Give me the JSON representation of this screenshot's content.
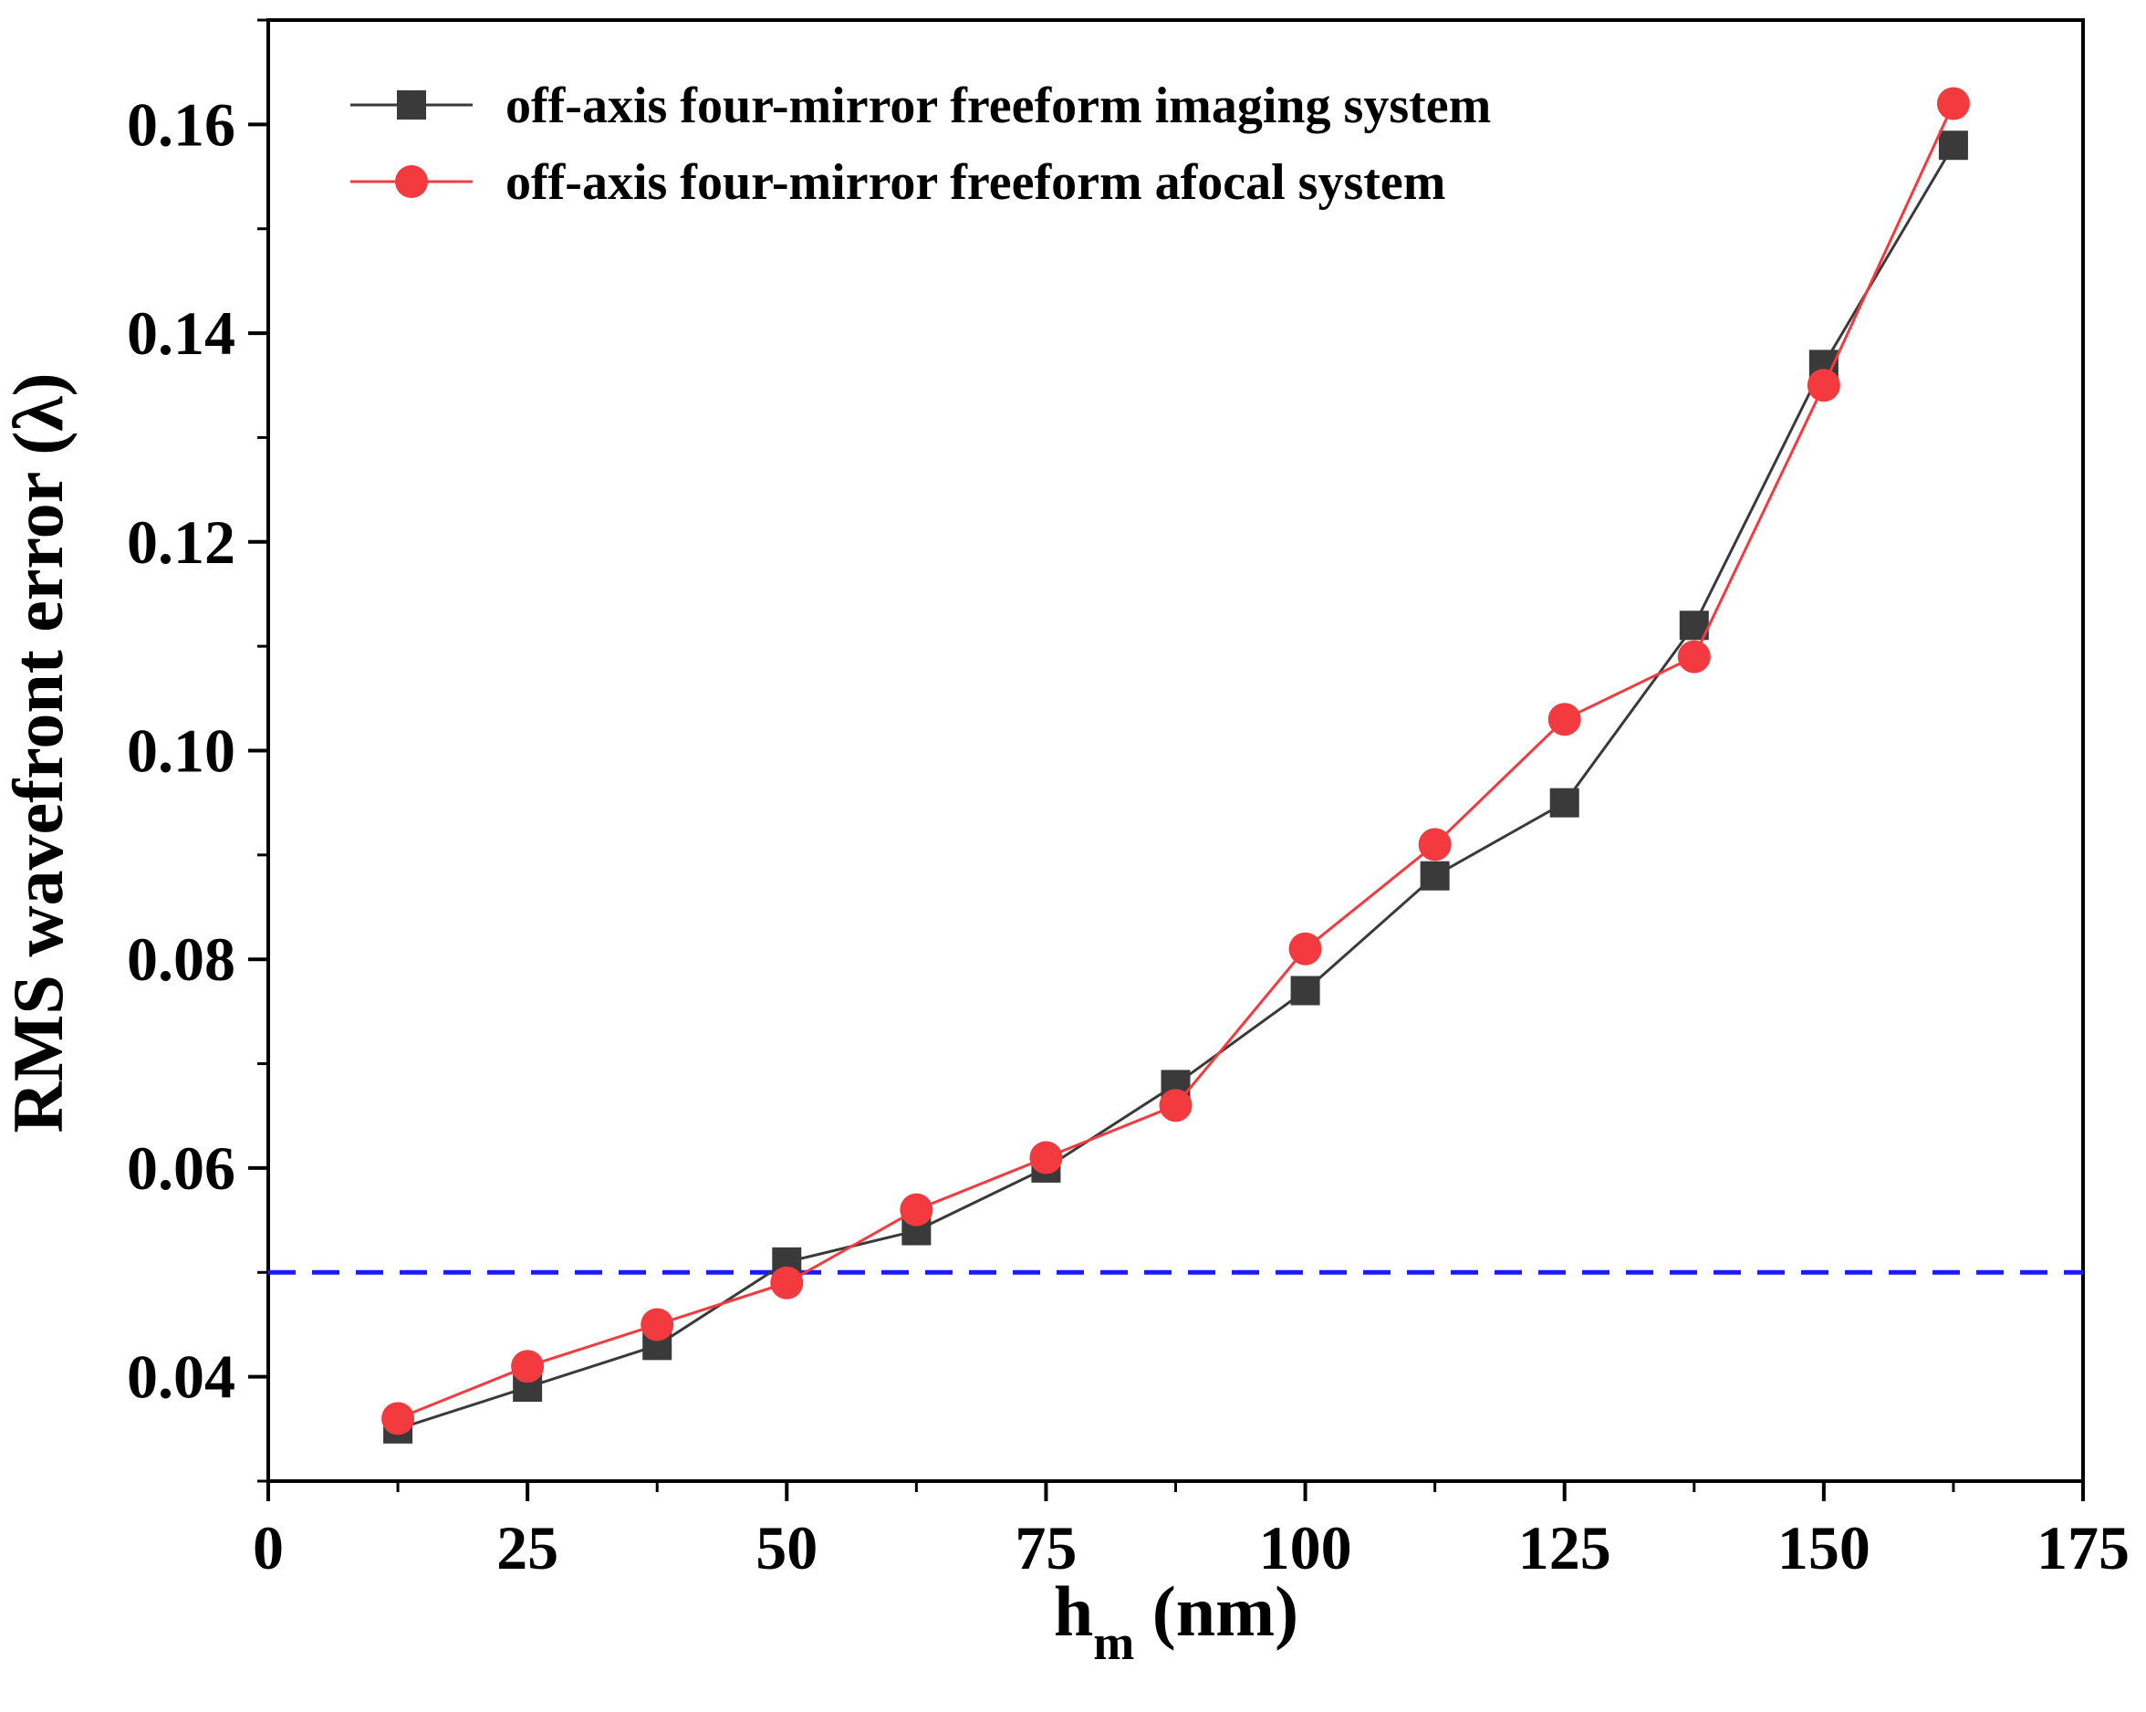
{
  "chart_data": {
    "type": "line",
    "xlabel": "h",
    "xlabel_subscript": "m",
    "xlabel_unit": " (nm)",
    "ylabel": "RMS wavefront error (λ)",
    "xlim": [
      0,
      175
    ],
    "ylim": [
      0.03,
      0.17
    ],
    "x_ticks": [
      0,
      25,
      50,
      75,
      100,
      125,
      150,
      175
    ],
    "x_tick_labels": [
      "0",
      "25",
      "50",
      "75",
      "100",
      "125",
      "150",
      "175"
    ],
    "y_ticks": [
      0.04,
      0.06,
      0.08,
      0.1,
      0.12,
      0.14,
      0.16
    ],
    "y_tick_labels": [
      "0.04",
      "0.06",
      "0.08",
      "0.10",
      "0.12",
      "0.14",
      "0.16"
    ],
    "grid": false,
    "legend_position": "top-left",
    "series": [
      {
        "name": "off-axis four-mirror freeform imaging system",
        "color": "#3a3a3a",
        "marker": "square",
        "x": [
          12.5,
          25,
          37.5,
          50,
          62.5,
          75,
          87.5,
          100,
          112.5,
          125,
          137.5,
          150,
          162.5
        ],
        "values": [
          0.035,
          0.039,
          0.043,
          0.051,
          0.054,
          0.06,
          0.068,
          0.077,
          0.088,
          0.095,
          0.112,
          0.137,
          0.158
        ]
      },
      {
        "name": "off-axis four-mirror freeform afocal system",
        "color": "#f23a3f",
        "marker": "circle",
        "x": [
          12.5,
          25,
          37.5,
          50,
          62.5,
          75,
          87.5,
          100,
          112.5,
          125,
          137.5,
          150,
          162.5
        ],
        "values": [
          0.036,
          0.041,
          0.045,
          0.049,
          0.056,
          0.061,
          0.066,
          0.081,
          0.091,
          0.103,
          0.109,
          0.135,
          0.162
        ]
      }
    ],
    "reference_line": {
      "y": 0.05,
      "color": "#1a1aff",
      "style": "dashed"
    }
  }
}
